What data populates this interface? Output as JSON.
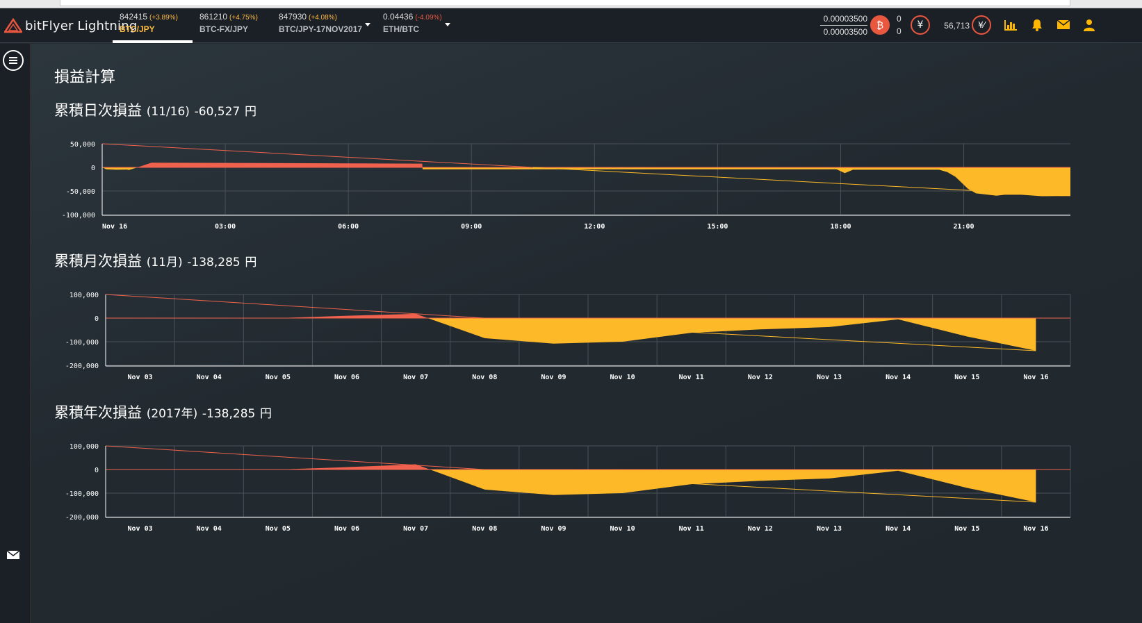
{
  "app": {
    "name": "bitFlyer Lightning"
  },
  "tickers": [
    {
      "price": "842415",
      "change": "(+3.89%)",
      "change_color": "#ffb93e",
      "symbol": "BTC/JPY",
      "active": true
    },
    {
      "price": "861210",
      "change": "(+4.75%)",
      "change_color": "#ffb93e",
      "symbol": "BTC-FX/JPY",
      "active": false
    },
    {
      "price": "847930",
      "change": "(+4.08%)",
      "change_color": "#ffb93e",
      "symbol": "BTC/JPY-17NOV2017",
      "active": false
    },
    {
      "price": "0.04436",
      "change": "(-4.09%)",
      "change_color": "#e9573f",
      "symbol": "ETH/BTC",
      "active": false
    }
  ],
  "account": {
    "btc_top": "0.00003500",
    "btc_bottom": "0.00003500",
    "btc_icon": "bitcoin-icon",
    "jpy_top": "0",
    "jpy_bottom": "0",
    "jpy_icon": "yen-icon",
    "collateral": "56,713",
    "collateral_icon": "collateral-icon"
  },
  "toolbar_icons": [
    "chart-icon",
    "bell-icon",
    "mail-icon",
    "user-icon"
  ],
  "page": {
    "title": "損益計算"
  },
  "sections": [
    {
      "title": "累積日次損益",
      "period": "(11/16)",
      "amount": "-60,527",
      "unit": "円"
    },
    {
      "title": "累積月次損益",
      "period": "(11月)",
      "amount": "-138,285",
      "unit": "円"
    },
    {
      "title": "累積年次損益",
      "period": "(2017年)",
      "amount": "-138,285",
      "unit": "円"
    }
  ],
  "colors": {
    "gain": "#f0624d",
    "loss": "#fdb927",
    "grid": "#4a5158",
    "bg": "#222a30"
  },
  "chart_data": [
    {
      "type": "area",
      "y_ticks": [
        "50,000",
        "0",
        "-50,000",
        "-100,000"
      ],
      "ylim": [
        -100000,
        50000
      ],
      "x_ticks": [
        "Nov 16",
        "03:00",
        "06:00",
        "09:00",
        "12:00",
        "15:00",
        "18:00",
        "21:00"
      ],
      "x_hours": [
        0,
        3,
        6,
        9,
        12,
        15,
        18,
        21
      ],
      "xlim_hours": [
        0,
        23.6
      ],
      "series": [
        {
          "x_hours": [
            0,
            0.1,
            0.35,
            0.6,
            0.65,
            0.9,
            1.2,
            7.8,
            7.81,
            8.0,
            9.0,
            11.0,
            12.0,
            15.0,
            17.9,
            18.1,
            18.3,
            20.4,
            20.6,
            20.8,
            21.1,
            21.3,
            21.5,
            21.8,
            22.0,
            22.4,
            22.9,
            23.6
          ],
          "y": [
            0,
            -4000,
            -5000,
            -4500,
            -5500,
            1000,
            10000,
            8000,
            -4000,
            -4000,
            -4000,
            -4000,
            -4000,
            -4000,
            -4000,
            -12000,
            -5000,
            -5000,
            -10000,
            -20000,
            -45000,
            -55000,
            -57000,
            -60000,
            -58000,
            -58000,
            -61000,
            -60527
          ]
        }
      ],
      "trend_gain": [
        [
          0,
          50000
        ],
        [
          10.5,
          0
        ]
      ],
      "trend_loss": [
        [
          10.5,
          0
        ],
        [
          23.6,
          -60000
        ]
      ]
    },
    {
      "type": "area",
      "y_ticks": [
        "100,000",
        "0",
        "-100,000",
        "-200,000"
      ],
      "ylim": [
        -200000,
        100000
      ],
      "categories": [
        "Nov 03",
        "Nov 04",
        "Nov 05",
        "Nov 06",
        "Nov 07",
        "Nov 08",
        "Nov 09",
        "Nov 10",
        "Nov 11",
        "Nov 12",
        "Nov 13",
        "Nov 14",
        "Nov 15",
        "Nov 16"
      ],
      "x": [
        2.5,
        3,
        4,
        5,
        6,
        7,
        8,
        9,
        10,
        11,
        12,
        13,
        14,
        15,
        16
      ],
      "y": [
        0,
        0,
        0,
        0,
        10000,
        18000,
        -85000,
        -108000,
        -100000,
        -62000,
        -48000,
        -38000,
        -5000,
        -78000,
        -138285
      ],
      "trend_gain": [
        [
          2.5,
          100000
        ],
        [
          8,
          0
        ]
      ],
      "trend_loss": [
        [
          11,
          -60000
        ],
        [
          16,
          -138285
        ]
      ]
    },
    {
      "type": "area",
      "y_ticks": [
        "100,000",
        "0",
        "-100,000",
        "-200,000"
      ],
      "ylim": [
        -200000,
        100000
      ],
      "categories": [
        "Nov 03",
        "Nov 04",
        "Nov 05",
        "Nov 06",
        "Nov 07",
        "Nov 08",
        "Nov 09",
        "Nov 10",
        "Nov 11",
        "Nov 12",
        "Nov 13",
        "Nov 14",
        "Nov 15",
        "Nov 16"
      ],
      "x": [
        2.5,
        3,
        4,
        5,
        6,
        7,
        8,
        9,
        10,
        11,
        12,
        13,
        14,
        15,
        16
      ],
      "y": [
        0,
        0,
        0,
        0,
        10000,
        22000,
        -85000,
        -108000,
        -100000,
        -62000,
        -48000,
        -38000,
        -5000,
        -78000,
        -138285
      ],
      "trend_gain": [
        [
          2.5,
          100000
        ],
        [
          8,
          0
        ]
      ],
      "trend_loss": [
        [
          11,
          -60000
        ],
        [
          16,
          -138285
        ]
      ]
    }
  ]
}
